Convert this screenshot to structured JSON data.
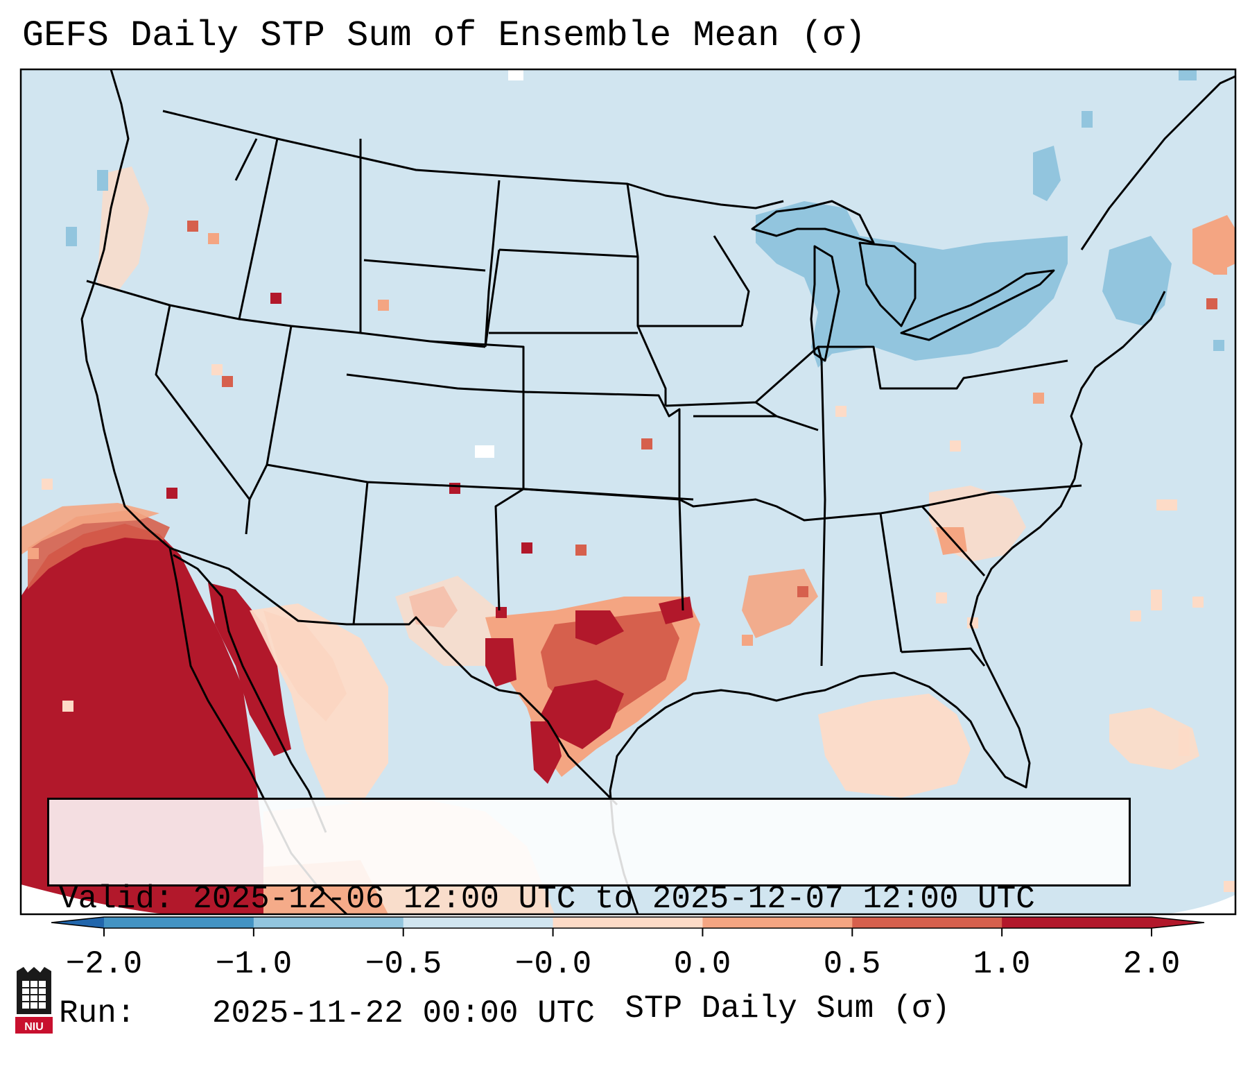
{
  "title": "GEFS Daily STP Sum of Ensemble Mean (σ)",
  "map": {
    "region": "Continental United States, northern Mexico, western Atlantic",
    "colors": {
      "ocean_land_neutral": "#d1e5f0",
      "below_neg0_5": "#92c5de",
      "below_neg1": "#4393c3",
      "low_pos": "#fddbc7",
      "mid_pos": "#f4a582",
      "high_pos": "#d6604d",
      "extreme_pos": "#b2182b",
      "missing": "#ffffff",
      "border": "#000000"
    }
  },
  "info": {
    "valid_label": "Valid:",
    "valid_value": "2025-12-06 12:00 UTC to 2025-12-07 12:00 UTC",
    "run_label": "Run:",
    "run_value": "2025-11-22 00:00 UTC"
  },
  "colorbar": {
    "ticks": [
      "−2.0",
      "−1.0",
      "−0.5",
      "−0.0",
      "0.0",
      "0.5",
      "1.0",
      "2.0"
    ],
    "segment_colors": [
      "#4393c3",
      "#92c5de",
      "#d1e5f0",
      "#fddbc7",
      "#f4a582",
      "#d6604d",
      "#b2182b"
    ],
    "under_color": "#2166ac",
    "over_color": "#b2182b",
    "label": "STP Daily Sum (σ)"
  },
  "logo": {
    "text": "NIU",
    "icon": "niu-logo-icon",
    "color": "#c8102e"
  }
}
